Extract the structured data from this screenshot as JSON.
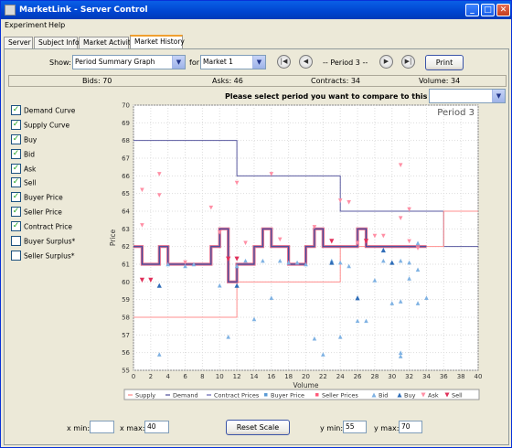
{
  "window": {
    "title": "MarketLink - Server Control"
  },
  "menu": [
    "Experiment",
    "Help"
  ],
  "tabs": [
    {
      "label": "Server",
      "active": false
    },
    {
      "label": "Subject Info",
      "active": false
    },
    {
      "label": "Market Activity",
      "active": false
    },
    {
      "label": "Market History",
      "active": true
    }
  ],
  "controls": {
    "show_label": "Show:",
    "graph_select": "Period Summary Graph",
    "for_label": "for",
    "market_select": "Market 1",
    "period_label": "-- Period 3 --",
    "print_label": "Print"
  },
  "stats": {
    "bids": "Bids: 70",
    "asks": "Asks: 46",
    "contracts": "Contracts: 34",
    "volume": "Volume: 34"
  },
  "compare": {
    "prompt": "Please select period you want to compare to this period.",
    "value": ""
  },
  "checkboxes": [
    {
      "label": "Demand Curve",
      "checked": true
    },
    {
      "label": "Supply Curve",
      "checked": true
    },
    {
      "label": "Buy",
      "checked": true
    },
    {
      "label": "Bid",
      "checked": true
    },
    {
      "label": "Ask",
      "checked": true
    },
    {
      "label": "Sell",
      "checked": true
    },
    {
      "label": "Buyer Price",
      "checked": true
    },
    {
      "label": "Seller Price",
      "checked": true
    },
    {
      "label": "Contract Price",
      "checked": true
    },
    {
      "label": "Buyer Surplus*",
      "checked": false
    },
    {
      "label": "Seller Surplus*",
      "checked": false
    }
  ],
  "bottom": {
    "xmin_label": "x min:",
    "xmin_value": "",
    "xmax_label": "x max:",
    "xmax_value": "40",
    "reset_label": "Reset Scale",
    "ymin_label": "y min:",
    "ymin_value": "55",
    "ymax_label": "y max:",
    "ymax_value": "70"
  },
  "colors": {
    "demand": "#5a5aa0",
    "supply": "#ff8f8f",
    "contract": "#c0304a",
    "buyer": "#5b9bd5",
    "seller": "#ff5a7a"
  },
  "chart_data": {
    "type": "line",
    "title": "Period 3",
    "xlabel": "Volume",
    "ylabel": "Price",
    "xlim": [
      0,
      40
    ],
    "ylim": [
      55,
      70
    ],
    "x_ticks": [
      0,
      2,
      4,
      6,
      8,
      10,
      12,
      14,
      16,
      18,
      20,
      22,
      24,
      26,
      28,
      30,
      32,
      34,
      36,
      38,
      40
    ],
    "y_ticks": [
      55,
      56,
      57,
      58,
      59,
      60,
      61,
      62,
      63,
      64,
      65,
      66,
      67,
      68,
      69,
      70
    ],
    "legend": [
      "Supply",
      "Demand",
      "Contract Prices",
      "Buyer Price",
      "Seller Prices",
      "Bid",
      "Buy",
      "Ask",
      "Sell"
    ],
    "demand_curve": [
      [
        0,
        68
      ],
      [
        12,
        68
      ],
      [
        12,
        66
      ],
      [
        24,
        66
      ],
      [
        24,
        64
      ],
      [
        36,
        64
      ],
      [
        36,
        62
      ],
      [
        40,
        62
      ]
    ],
    "supply_curve": [
      [
        0,
        58
      ],
      [
        12,
        58
      ],
      [
        12,
        60
      ],
      [
        24,
        60
      ],
      [
        24,
        62
      ],
      [
        36,
        62
      ],
      [
        36,
        64
      ],
      [
        40,
        64
      ]
    ],
    "contract_prices": [
      [
        0,
        62
      ],
      [
        1,
        62
      ],
      [
        1,
        61
      ],
      [
        3,
        61
      ],
      [
        3,
        62
      ],
      [
        4,
        62
      ],
      [
        4,
        61
      ],
      [
        9,
        61
      ],
      [
        9,
        62
      ],
      [
        10,
        62
      ],
      [
        10,
        63
      ],
      [
        11,
        63
      ],
      [
        11,
        60
      ],
      [
        12,
        60
      ],
      [
        12,
        61
      ],
      [
        13,
        61
      ],
      [
        13,
        61
      ],
      [
        14,
        61
      ],
      [
        14,
        62
      ],
      [
        15,
        62
      ],
      [
        15,
        63
      ],
      [
        16,
        63
      ],
      [
        16,
        62
      ],
      [
        18,
        62
      ],
      [
        18,
        61
      ],
      [
        20,
        61
      ],
      [
        20,
        62
      ],
      [
        21,
        62
      ],
      [
        21,
        63
      ],
      [
        22,
        63
      ],
      [
        22,
        62
      ],
      [
        24,
        62
      ],
      [
        24,
        62
      ],
      [
        25,
        62
      ],
      [
        25,
        62
      ],
      [
        26,
        62
      ],
      [
        26,
        63
      ],
      [
        27,
        63
      ],
      [
        27,
        62
      ],
      [
        29,
        62
      ],
      [
        29,
        62
      ],
      [
        30,
        62
      ],
      [
        30,
        62
      ],
      [
        31,
        62
      ],
      [
        31,
        62
      ],
      [
        32,
        62
      ],
      [
        32,
        62
      ],
      [
        33,
        62
      ],
      [
        33,
        62
      ],
      [
        34,
        62
      ]
    ],
    "asks": [
      [
        1,
        65.2
      ],
      [
        1,
        63.2
      ],
      [
        3,
        66.1
      ],
      [
        3,
        64.9
      ],
      [
        6,
        61.1
      ],
      [
        9,
        64.2
      ],
      [
        10,
        62.8
      ],
      [
        12,
        65.6
      ],
      [
        13,
        62.2
      ],
      [
        16,
        66.1
      ],
      [
        17,
        62.4
      ],
      [
        21,
        63.1
      ],
      [
        24,
        64.6
      ],
      [
        25,
        64.5
      ],
      [
        26,
        62.2
      ],
      [
        28,
        62.6
      ],
      [
        29,
        62.6
      ],
      [
        31,
        66.6
      ],
      [
        32,
        62.3
      ],
      [
        31,
        63.6
      ],
      [
        32,
        64.1
      ],
      [
        33,
        61.9
      ]
    ],
    "sells": [
      [
        1,
        60.1
      ],
      [
        2,
        60.1
      ],
      [
        11,
        61.3
      ],
      [
        12,
        61.3
      ],
      [
        23,
        62.3
      ],
      [
        27,
        62.3
      ]
    ],
    "bids": [
      [
        3,
        55.9
      ],
      [
        4,
        61.0
      ],
      [
        6,
        60.9
      ],
      [
        7,
        61.0
      ],
      [
        10,
        59.8
      ],
      [
        11,
        56.9
      ],
      [
        12,
        60.9
      ],
      [
        13,
        61.2
      ],
      [
        14,
        57.9
      ],
      [
        15,
        61.2
      ],
      [
        16,
        59.1
      ],
      [
        17,
        61.2
      ],
      [
        18,
        61.1
      ],
      [
        19,
        61.1
      ],
      [
        20,
        61.0
      ],
      [
        21,
        56.8
      ],
      [
        22,
        55.9
      ],
      [
        23,
        61.2
      ],
      [
        24,
        56.9
      ],
      [
        24,
        61.1
      ],
      [
        25,
        60.9
      ],
      [
        26,
        57.8
      ],
      [
        27,
        57.8
      ],
      [
        28,
        60.1
      ],
      [
        29,
        61.2
      ],
      [
        30,
        58.8
      ],
      [
        31,
        61.2
      ],
      [
        31,
        58.9
      ],
      [
        31,
        56.0
      ],
      [
        31,
        55.8
      ],
      [
        32,
        61.1
      ],
      [
        32,
        60.2
      ],
      [
        33,
        60.7
      ],
      [
        33,
        58.8
      ],
      [
        34,
        59.1
      ],
      [
        33,
        62.2
      ]
    ],
    "buys": [
      [
        3,
        59.8
      ],
      [
        12,
        59.8
      ],
      [
        23,
        61.1
      ],
      [
        26,
        59.1
      ],
      [
        29,
        61.8
      ],
      [
        30,
        61.1
      ]
    ]
  }
}
